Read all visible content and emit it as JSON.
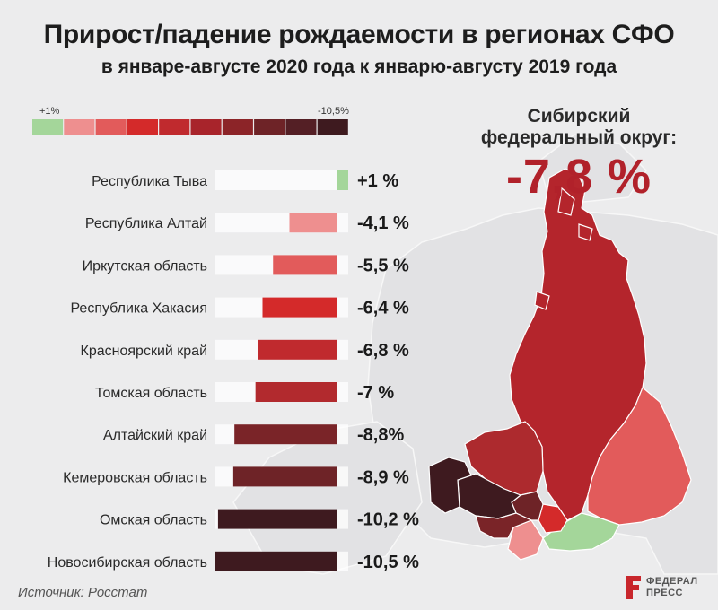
{
  "header": {
    "title": "Прирост/падение рождаемости в регионах СФО",
    "subtitle": "в январе-августе 2020 года к январю-августу 2019 года"
  },
  "scale": {
    "left_label": "+1%",
    "right_label": "-10,5%",
    "colors": [
      "#a4d69a",
      "#ee8f8f",
      "#e25b5b",
      "#d42a2a",
      "#c02a2e",
      "#a8242b",
      "#8c2428",
      "#6e2327",
      "#541f25",
      "#3e1a1f"
    ]
  },
  "district": {
    "label_line1": "Сибирский",
    "label_line2": "федеральный округ:",
    "value": "-7,8 %"
  },
  "source": "Источник: Росстат",
  "brand": {
    "line1": "ФЕДЕРАЛ",
    "line2": "ПРЕСС",
    "color": "#c8262c"
  },
  "chart_data": {
    "type": "bar",
    "title": "Прирост/падение рождаемости в регионах СФО",
    "subtitle": "в январе-августе 2020 года к январю-августу 2019 года",
    "categories": [
      "Республика Тыва",
      "Республика Алтай",
      "Иркутская область",
      "Республика Хакасия",
      "Красноярский край",
      "Томская область",
      "Алтайский край",
      "Кемеровская область",
      "Омская область",
      "Новосибирская область"
    ],
    "values": [
      1,
      -4.1,
      -5.5,
      -6.4,
      -6.8,
      -7,
      -8.8,
      -8.9,
      -10.2,
      -10.5
    ],
    "value_labels": [
      "+1 %",
      "-4,1 %",
      "-5,5 %",
      "-6,4 %",
      "-6,8 %",
      "-7 %",
      "-8,8%",
      "-8,9 %",
      "-10,2 %",
      "-10,5 %"
    ],
    "colors": [
      "#a4d69a",
      "#ee8f8f",
      "#e25b5b",
      "#d42a2a",
      "#c02a2e",
      "#b22a2e",
      "#7a2428",
      "#6e2327",
      "#3e1a1f",
      "#3e1a1f"
    ],
    "xlim": [
      -10.5,
      1
    ],
    "orientation": "horizontal",
    "total": {
      "label": "Сибирский федеральный округ:",
      "value": -7.8
    }
  }
}
